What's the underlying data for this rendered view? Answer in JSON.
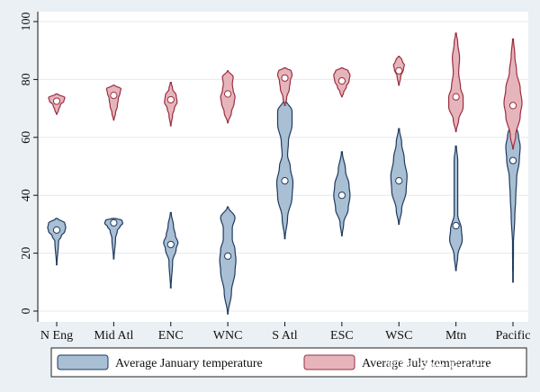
{
  "chart_data": {
    "type": "violin",
    "title": "",
    "xlabel": "",
    "ylabel": "",
    "ylim": [
      0,
      100
    ],
    "yticks": [
      "0",
      "20",
      "40",
      "60",
      "80",
      "100"
    ],
    "categories": [
      "N Eng",
      "Mid Atl",
      "ENC",
      "WNC",
      "S Atl",
      "ESC",
      "WSC",
      "Mtn",
      "Pacific"
    ],
    "series": [
      {
        "name": "Average January temperature",
        "color": "#a9bfd3",
        "edge": "#1f3a5f",
        "medians": [
          28,
          30.5,
          23,
          19,
          45,
          40,
          45,
          29.5,
          52
        ],
        "ranges": [
          [
            16,
            32
          ],
          [
            18,
            32
          ],
          [
            8,
            34
          ],
          [
            -1,
            36
          ],
          [
            25,
            73
          ],
          [
            26,
            55
          ],
          [
            30,
            63
          ],
          [
            14,
            57
          ],
          [
            10,
            75
          ]
        ]
      },
      {
        "name": "Average July temperature",
        "color": "#e6b5bc",
        "edge": "#9b2d3f",
        "medians": [
          72.5,
          74.5,
          73,
          75,
          80.5,
          79.5,
          83,
          74,
          71
        ],
        "ranges": [
          [
            68,
            75
          ],
          [
            66,
            78
          ],
          [
            64,
            79
          ],
          [
            65,
            83
          ],
          [
            71,
            84
          ],
          [
            74,
            84
          ],
          [
            78,
            88
          ],
          [
            62,
            96
          ],
          [
            56,
            94
          ]
        ]
      }
    ]
  },
  "watermark": "知乎 @Mr Figurant"
}
